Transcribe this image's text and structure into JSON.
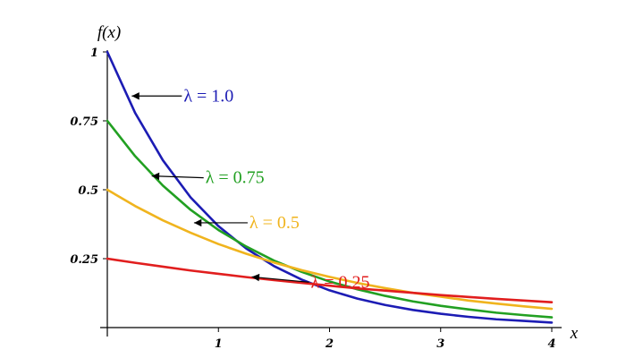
{
  "chart_data": {
    "type": "line",
    "title": "",
    "xlabel": "x",
    "ylabel": "f(x)",
    "xlim": [
      0,
      4
    ],
    "ylim": [
      0,
      1
    ],
    "grid": false,
    "x_ticks": [
      {
        "value": 1,
        "label": "1"
      },
      {
        "value": 2,
        "label": "2"
      },
      {
        "value": 3,
        "label": "3"
      },
      {
        "value": 4,
        "label": "4"
      }
    ],
    "y_ticks": [
      {
        "value": 0.25,
        "label": "0.25"
      },
      {
        "value": 0.5,
        "label": "0.5"
      },
      {
        "value": 0.75,
        "label": "0.75"
      },
      {
        "value": 1,
        "label": "1"
      }
    ],
    "x": [
      0,
      0.25,
      0.5,
      0.75,
      1,
      1.25,
      1.5,
      1.75,
      2,
      2.25,
      2.5,
      2.75,
      3,
      3.25,
      3.5,
      3.75,
      4
    ],
    "series": [
      {
        "name": "λ = 1.0",
        "color": "#1c1cb4",
        "values": [
          1.0,
          0.779,
          0.607,
          0.472,
          0.368,
          0.287,
          0.223,
          0.174,
          0.135,
          0.105,
          0.082,
          0.064,
          0.05,
          0.039,
          0.03,
          0.024,
          0.018
        ]
      },
      {
        "name": "λ = 0.75",
        "color": "#22a022",
        "values": [
          0.75,
          0.622,
          0.515,
          0.427,
          0.354,
          0.294,
          0.243,
          0.202,
          0.167,
          0.139,
          0.115,
          0.095,
          0.079,
          0.066,
          0.054,
          0.045,
          0.037
        ]
      },
      {
        "name": "λ = 0.5",
        "color": "#f0b41e",
        "values": [
          0.5,
          0.441,
          0.389,
          0.344,
          0.303,
          0.268,
          0.236,
          0.208,
          0.184,
          0.162,
          0.143,
          0.126,
          0.112,
          0.098,
          0.087,
          0.077,
          0.068
        ]
      },
      {
        "name": "λ = 0.25",
        "color": "#e11e1e",
        "values": [
          0.25,
          0.235,
          0.221,
          0.207,
          0.195,
          0.183,
          0.172,
          0.162,
          0.152,
          0.142,
          0.134,
          0.126,
          0.118,
          0.111,
          0.104,
          0.098,
          0.092
        ]
      }
    ],
    "annotations": [
      {
        "text": "λ = 1.0",
        "color": "#1c1cb4",
        "target": [
          0.22,
          0.84
        ]
      },
      {
        "text": "λ = 0.75",
        "color": "#22a022",
        "target": [
          0.4,
          0.55
        ]
      },
      {
        "text": "λ = 0.5",
        "color": "#f0b41e",
        "target": [
          0.78,
          0.38
        ]
      },
      {
        "text": "λ = 0.25",
        "color": "#e11e1e",
        "target": [
          1.3,
          0.184
        ]
      }
    ]
  }
}
